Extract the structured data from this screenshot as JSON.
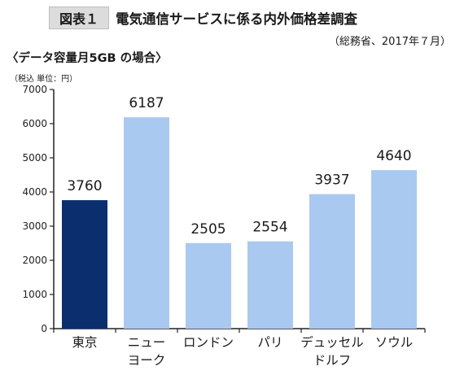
{
  "header": {
    "figure_label": "図表１",
    "title": "電気通信サービスに係る内外価格差調査",
    "source": "（総務省、2017年７月）"
  },
  "chart_data": {
    "type": "bar",
    "title": "〈データ容量月5GB の場合〉",
    "unit_label": "（税込 単位：円）",
    "categories": [
      "東京",
      "ニュー\nヨーク",
      "ロンドン",
      "パリ",
      "デュッセル\nドルフ",
      "ソウル"
    ],
    "values": [
      3760,
      6187,
      2505,
      2554,
      3937,
      4640
    ],
    "data_labels": [
      "3760",
      "6187",
      "2505",
      "2554",
      "3937",
      "4640"
    ],
    "yticks": [
      "0",
      "1000",
      "2000",
      "3000",
      "4000",
      "5000",
      "6000",
      "7000"
    ],
    "ylim": [
      0,
      7000
    ],
    "grid": false,
    "colors": {
      "highlight": "#0b2e6e",
      "default": "#a9c9f0",
      "axis": "#222222"
    },
    "highlight_index": 0
  }
}
